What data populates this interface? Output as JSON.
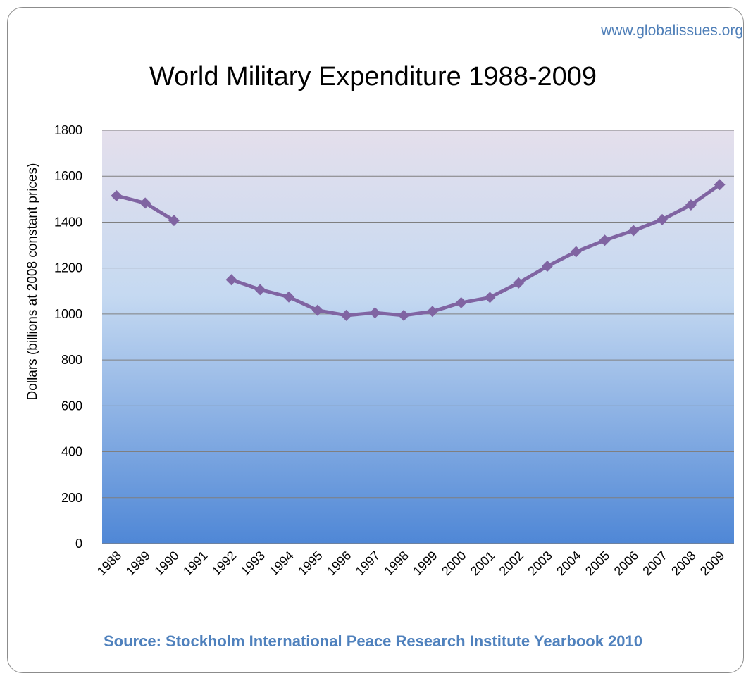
{
  "watermark": "www.globalissues.org",
  "source_note": "Source: Stockholm International Peace Research Institute Yearbook 2010",
  "colors": {
    "line": "#8064a2",
    "plot_top": "#e4dfec",
    "plot_mid": "#c5d9f1",
    "plot_bottom": "#4f87d6",
    "gridline": "#7f7f7f",
    "source_text": "#4f81bd"
  },
  "chart_data": {
    "type": "line",
    "title": "World Military Expenditure 1988-2009",
    "xlabel": "",
    "ylabel": "Dollars (billions at 2008 constant prices)",
    "ylim": [
      0,
      1800
    ],
    "yticks": [
      0,
      200,
      400,
      600,
      800,
      1000,
      1200,
      1400,
      1600,
      1800
    ],
    "grid": true,
    "legend": "none",
    "categories": [
      "1988",
      "1989",
      "1990",
      "1991",
      "1992",
      "1993",
      "1994",
      "1995",
      "1996",
      "1997",
      "1998",
      "1999",
      "2000",
      "2001",
      "2002",
      "2003",
      "2004",
      "2005",
      "2006",
      "2007",
      "2008",
      "2009"
    ],
    "series": [
      {
        "values": [
          1515,
          1483,
          1407,
          null,
          1149,
          1106,
          1074,
          1016,
          994,
          1005,
          994,
          1011,
          1049,
          1072,
          1135,
          1208,
          1271,
          1321,
          1363,
          1411,
          1475,
          1563
        ]
      }
    ]
  }
}
